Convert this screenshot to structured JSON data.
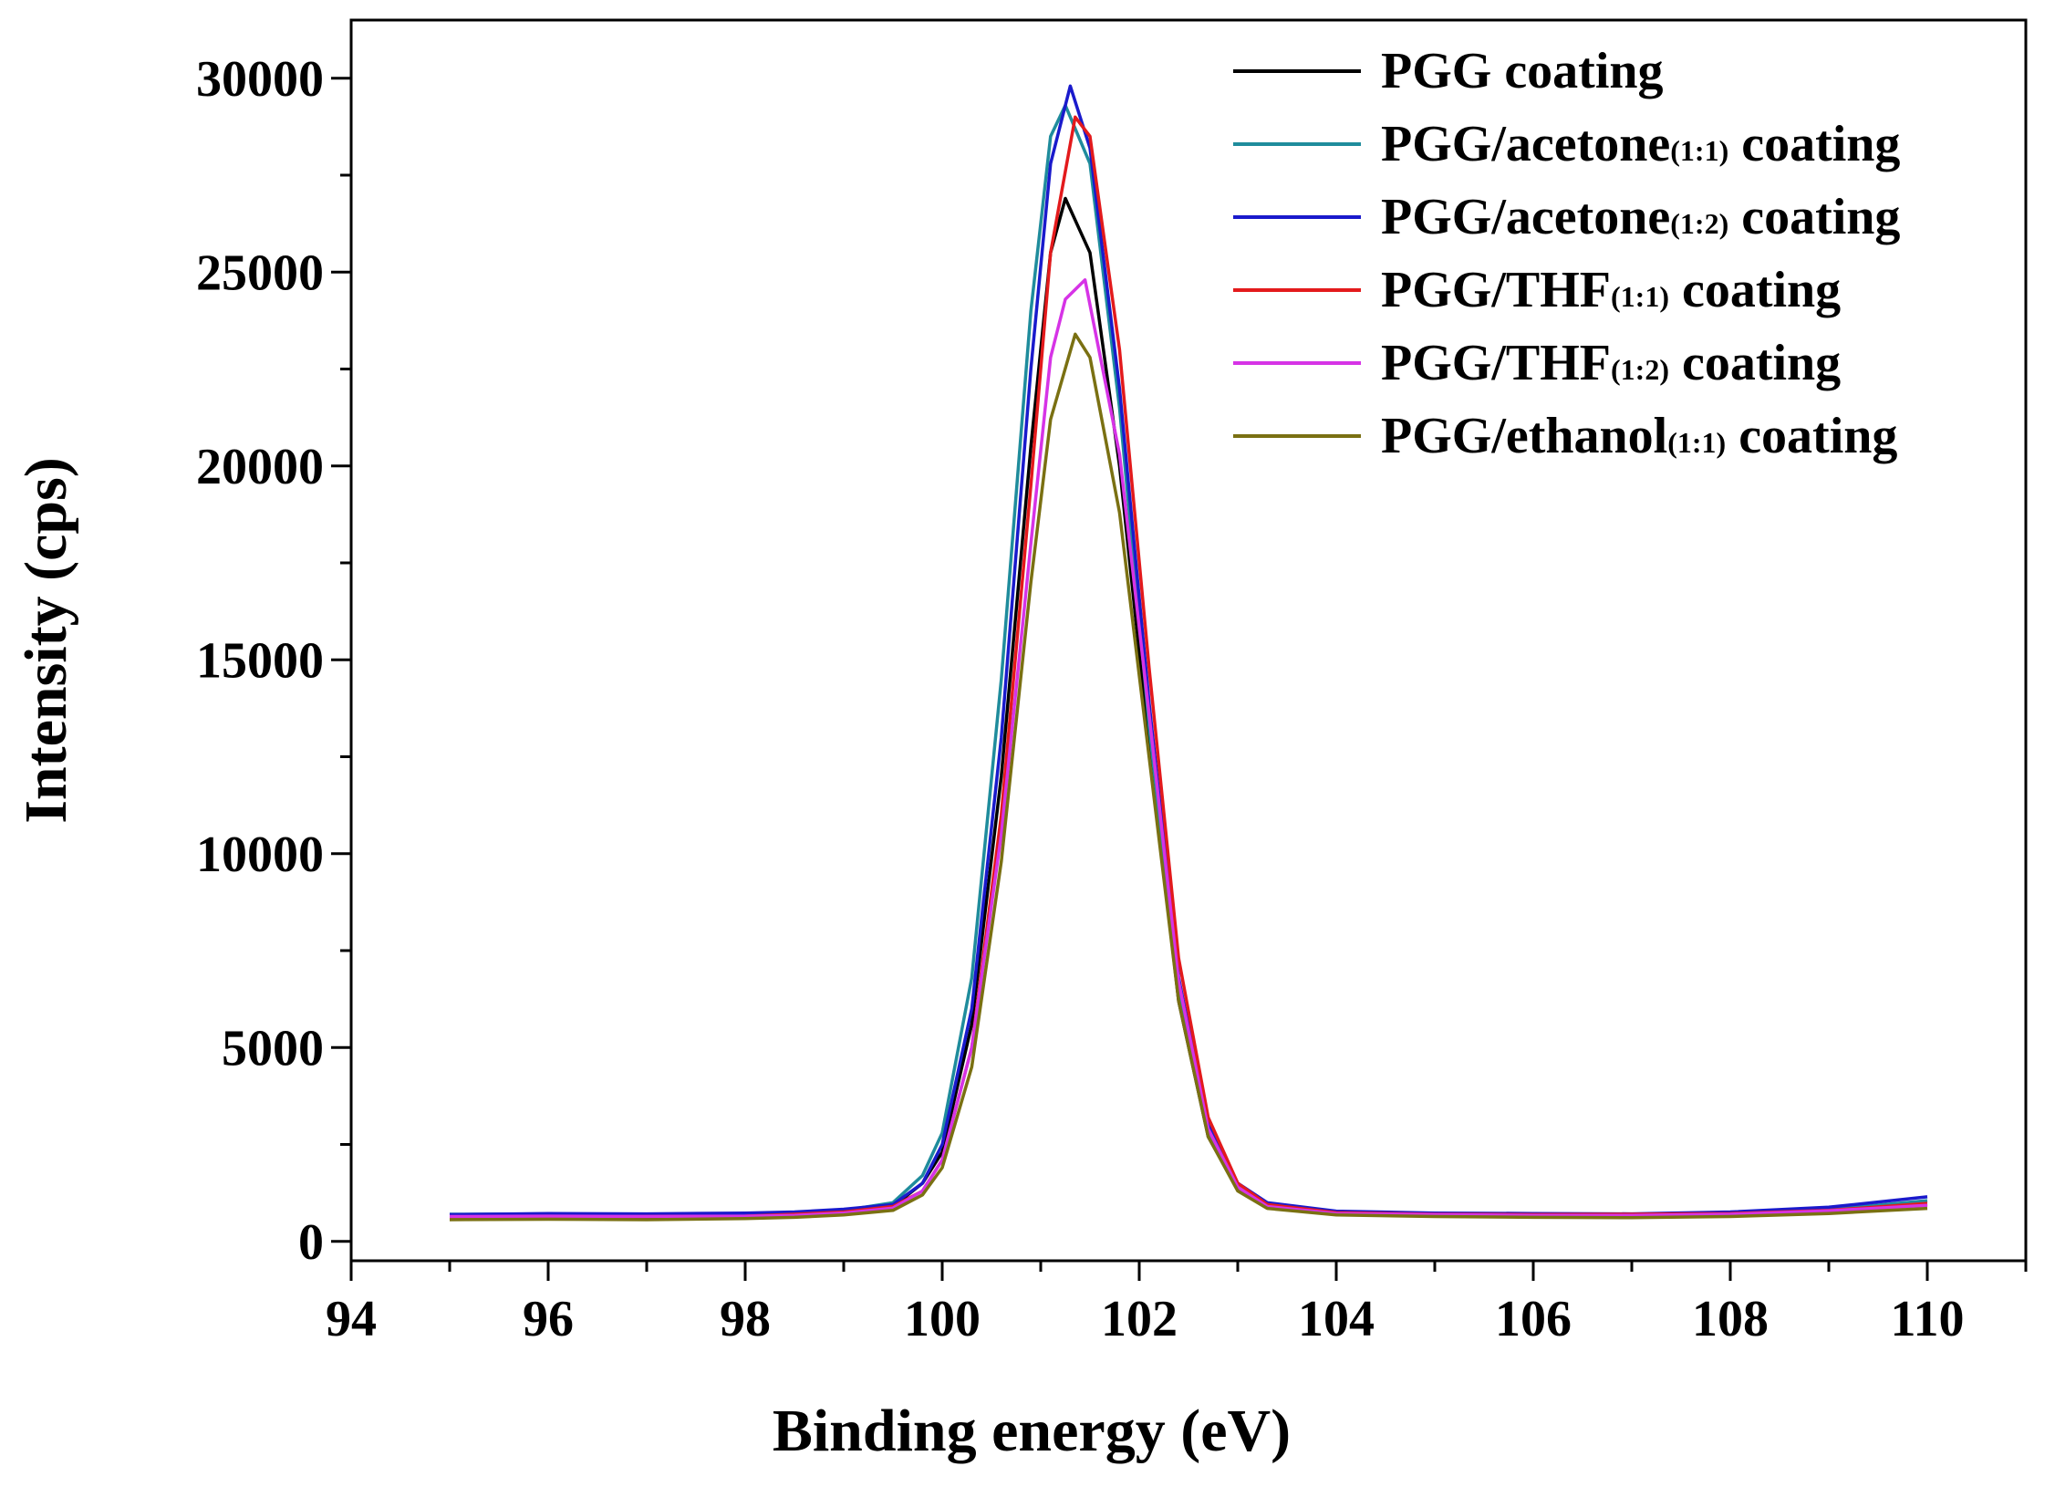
{
  "chart_data": {
    "type": "line",
    "title": "",
    "xlabel": "Binding energy (eV)",
    "ylabel": "Intensity (cps)",
    "xlim": [
      94,
      111
    ],
    "ylim": [
      -500,
      31500
    ],
    "xticks": [
      94,
      96,
      98,
      100,
      102,
      104,
      106,
      108,
      110
    ],
    "yticks": [
      0,
      5000,
      10000,
      15000,
      20000,
      25000,
      30000
    ],
    "grid": false,
    "legend_position": "top-right",
    "series": [
      {
        "name": "PGG coating",
        "label_main": "PGG coating",
        "label_sub": "",
        "label_tail": "",
        "color": "#000000",
        "x": [
          95,
          96,
          97,
          98,
          98.5,
          99,
          99.5,
          99.8,
          100,
          100.3,
          100.6,
          100.9,
          101.1,
          101.25,
          101.5,
          101.8,
          102.1,
          102.4,
          102.7,
          103,
          103.3,
          104,
          105,
          106,
          107,
          108,
          109,
          110
        ],
        "y": [
          620,
          640,
          630,
          660,
          690,
          740,
          900,
          1500,
          2300,
          5600,
          12000,
          20500,
          25500,
          26900,
          25500,
          20000,
          12800,
          6200,
          2700,
          1350,
          900,
          720,
          690,
          660,
          650,
          680,
          760,
          950
        ]
      },
      {
        "name": "PGG/acetone(1:1) coating",
        "label_main": "PGG/acetone",
        "label_sub": "(1:1)",
        "label_tail": " coating",
        "color": "#1f8c9c",
        "x": [
          95,
          96,
          97,
          98,
          98.5,
          99,
          99.5,
          99.8,
          100,
          100.3,
          100.6,
          100.9,
          101.1,
          101.25,
          101.5,
          101.8,
          102.1,
          102.4,
          102.7,
          103,
          103.3,
          104,
          105,
          106,
          107,
          108,
          109,
          110
        ],
        "y": [
          700,
          710,
          700,
          720,
          740,
          800,
          1000,
          1700,
          2800,
          6800,
          14500,
          24000,
          28500,
          29300,
          27800,
          21500,
          13300,
          6400,
          2800,
          1400,
          950,
          760,
          720,
          700,
          690,
          720,
          820,
          1050
        ]
      },
      {
        "name": "PGG/acetone(1:2) coating",
        "label_main": "PGG/acetone",
        "label_sub": "(1:2)",
        "label_tail": " coating",
        "color": "#1a1acc",
        "x": [
          95,
          96,
          97,
          98,
          98.5,
          99,
          99.5,
          99.8,
          100,
          100.3,
          100.6,
          100.9,
          101.1,
          101.3,
          101.5,
          101.8,
          102.1,
          102.4,
          102.7,
          103,
          103.3,
          104,
          105,
          106,
          107,
          108,
          109,
          110
        ],
        "y": [
          690,
          720,
          710,
          730,
          760,
          830,
          950,
          1500,
          2500,
          6000,
          13000,
          22500,
          27800,
          29800,
          28200,
          22000,
          13900,
          6800,
          3000,
          1500,
          1000,
          780,
          730,
          720,
          710,
          760,
          880,
          1150
        ]
      },
      {
        "name": "PGG/THF(1:1) coating",
        "label_main": "PGG/THF",
        "label_sub": "(1:1)",
        "label_tail": " coating",
        "color": "#e31a1c",
        "x": [
          95,
          96,
          97,
          98,
          98.5,
          99,
          99.5,
          99.8,
          100,
          100.3,
          100.6,
          100.9,
          101.1,
          101.35,
          101.5,
          101.8,
          102.1,
          102.4,
          102.7,
          103,
          103.3,
          104,
          105,
          106,
          107,
          108,
          109,
          110
        ],
        "y": [
          600,
          620,
          640,
          650,
          700,
          760,
          900,
          1300,
          2100,
          5000,
          11000,
          19500,
          25500,
          29000,
          28500,
          23000,
          14800,
          7300,
          3200,
          1500,
          950,
          740,
          700,
          690,
          700,
          720,
          800,
          980
        ]
      },
      {
        "name": "PGG/THF(1:2) coating",
        "label_main": "PGG/THF",
        "label_sub": "(1:2)",
        "label_tail": " coating",
        "color": "#d633e6",
        "x": [
          95,
          96,
          97,
          98,
          98.5,
          99,
          99.5,
          99.8,
          100,
          100.3,
          100.6,
          100.9,
          101.1,
          101.25,
          101.45,
          101.8,
          102.1,
          102.4,
          102.7,
          103,
          103.3,
          104,
          105,
          106,
          107,
          108,
          109,
          110
        ],
        "y": [
          640,
          650,
          640,
          650,
          670,
          730,
          860,
          1300,
          2100,
          5000,
          10500,
          18000,
          22800,
          24300,
          24800,
          20300,
          13600,
          6700,
          2900,
          1400,
          900,
          720,
          690,
          670,
          670,
          700,
          790,
          930
        ]
      },
      {
        "name": "PGG/ethanol(1:1) coating",
        "label_main": "PGG/ethanol",
        "label_sub": "(1:1)",
        "label_tail": " coating",
        "color": "#7a7012",
        "x": [
          95,
          96,
          97,
          98,
          98.5,
          99,
          99.5,
          99.8,
          100,
          100.3,
          100.6,
          100.9,
          101.1,
          101.35,
          101.5,
          101.8,
          102.1,
          102.4,
          102.7,
          103,
          103.3,
          104,
          105,
          106,
          107,
          108,
          109,
          110
        ],
        "y": [
          560,
          570,
          560,
          590,
          620,
          680,
          800,
          1200,
          1900,
          4500,
          9800,
          17000,
          21200,
          23400,
          22800,
          18800,
          12500,
          6200,
          2700,
          1300,
          850,
          680,
          640,
          620,
          610,
          640,
          720,
          850
        ]
      }
    ]
  }
}
